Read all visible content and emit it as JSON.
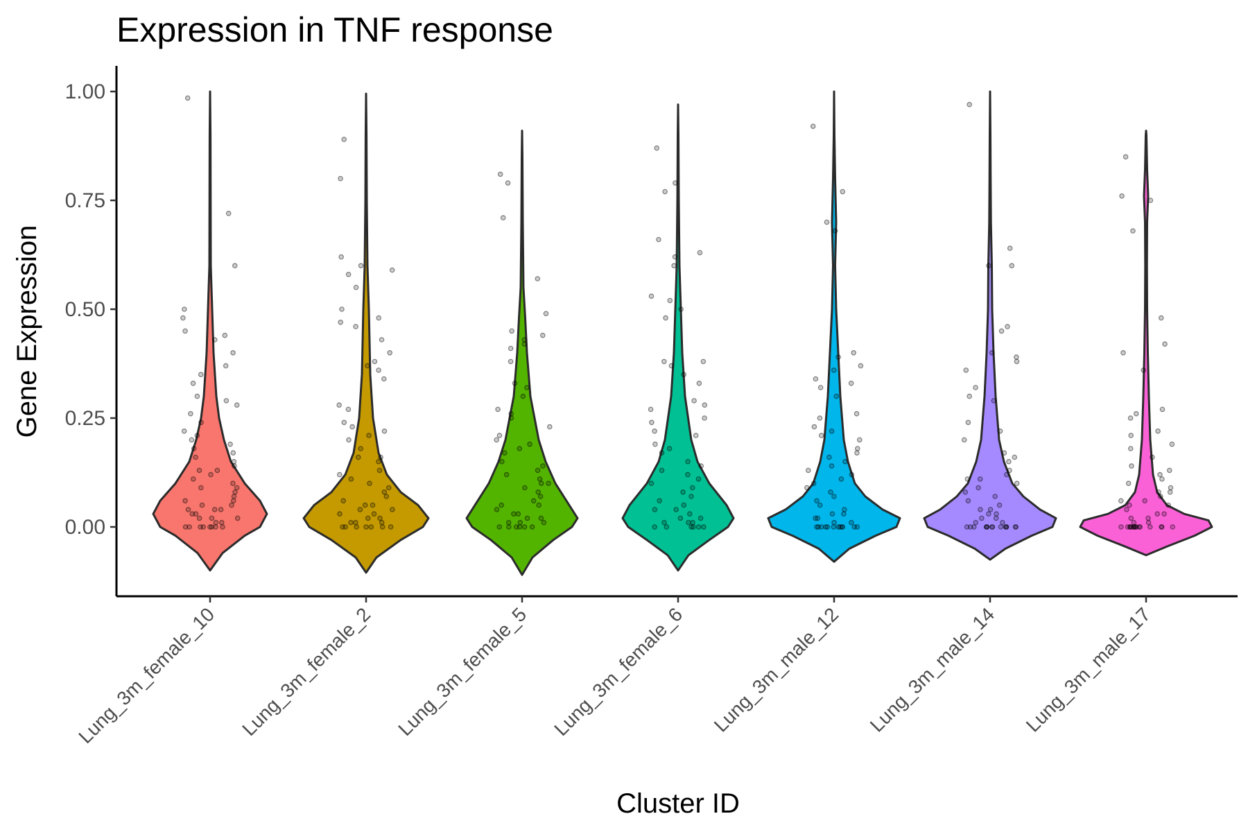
{
  "chart_data": {
    "type": "violin",
    "title": "Expression in TNF response",
    "xlabel": "Cluster ID",
    "ylabel": "Gene Expression",
    "ylim": [
      -0.16,
      1.04
    ],
    "yticks": [
      "0.00",
      "0.25",
      "0.50",
      "0.75",
      "1.00"
    ],
    "legend": "none",
    "grid": false,
    "categories": [
      "Lung_3m_female_10",
      "Lung_3m_female_2",
      "Lung_3m_female_5",
      "Lung_3m_female_6",
      "Lung_3m_male_12",
      "Lung_3m_male_14",
      "Lung_3m_male_17"
    ],
    "series": [
      {
        "category": "Lung_3m_female_10",
        "color": "#F8766D",
        "min": -0.1,
        "max": 1.0,
        "density": [
          [
            -0.1,
            0.0
          ],
          [
            -0.06,
            0.18
          ],
          [
            -0.02,
            0.5
          ],
          [
            0.0,
            0.72
          ],
          [
            0.03,
            0.82
          ],
          [
            0.06,
            0.72
          ],
          [
            0.1,
            0.5
          ],
          [
            0.15,
            0.3
          ],
          [
            0.2,
            0.2
          ],
          [
            0.25,
            0.13
          ],
          [
            0.3,
            0.09
          ],
          [
            0.4,
            0.05
          ],
          [
            0.5,
            0.03
          ],
          [
            0.6,
            0.01
          ],
          [
            0.75,
            0.008
          ],
          [
            0.9,
            0.006
          ],
          [
            1.0,
            0.0
          ]
        ],
        "points": [
          0.985,
          0.72,
          0.6,
          0.5,
          0.48,
          0.45,
          0.44,
          0.43,
          0.4,
          0.37,
          0.35,
          0.33,
          0.3,
          0.29,
          0.28,
          0.26,
          0.24,
          0.22,
          0.21,
          0.2,
          0.19,
          0.18,
          0.17,
          0.16,
          0.15,
          0.14,
          0.13,
          0.13,
          0.12,
          0.11,
          0.1,
          0.09,
          0.09,
          0.08,
          0.07,
          0.06,
          0.06,
          0.05,
          0.05,
          0.04,
          0.04,
          0.04,
          0.03,
          0.03,
          0.02,
          0.02,
          0.02,
          0.01,
          0.01,
          0.0,
          0.0,
          0.0,
          0.0,
          0.0,
          0.0,
          0.0,
          0.0
        ]
      },
      {
        "category": "Lung_3m_female_2",
        "color": "#C49A00",
        "min": -0.105,
        "max": 0.995,
        "density": [
          [
            -0.105,
            0.0
          ],
          [
            -0.07,
            0.15
          ],
          [
            -0.03,
            0.5
          ],
          [
            0.0,
            0.82
          ],
          [
            0.02,
            0.9
          ],
          [
            0.05,
            0.75
          ],
          [
            0.08,
            0.5
          ],
          [
            0.12,
            0.3
          ],
          [
            0.17,
            0.18
          ],
          [
            0.25,
            0.1
          ],
          [
            0.35,
            0.06
          ],
          [
            0.5,
            0.04
          ],
          [
            0.6,
            0.02
          ],
          [
            0.75,
            0.01
          ],
          [
            0.9,
            0.006
          ],
          [
            0.995,
            0.0
          ]
        ],
        "points": [
          0.89,
          0.8,
          0.62,
          0.6,
          0.59,
          0.58,
          0.55,
          0.5,
          0.48,
          0.47,
          0.46,
          0.43,
          0.4,
          0.38,
          0.37,
          0.36,
          0.34,
          0.28,
          0.27,
          0.24,
          0.23,
          0.22,
          0.21,
          0.2,
          0.18,
          0.16,
          0.16,
          0.15,
          0.13,
          0.12,
          0.11,
          0.1,
          0.09,
          0.08,
          0.07,
          0.06,
          0.05,
          0.05,
          0.04,
          0.04,
          0.03,
          0.03,
          0.02,
          0.02,
          0.01,
          0.01,
          0.01,
          0.0,
          0.0,
          0.0,
          0.0,
          0.0,
          0.0,
          0.0
        ]
      },
      {
        "category": "Lung_3m_female_5",
        "color": "#53B400",
        "min": -0.11,
        "max": 0.91,
        "density": [
          [
            -0.11,
            0.0
          ],
          [
            -0.07,
            0.15
          ],
          [
            -0.03,
            0.45
          ],
          [
            0.0,
            0.72
          ],
          [
            0.02,
            0.8
          ],
          [
            0.05,
            0.68
          ],
          [
            0.1,
            0.48
          ],
          [
            0.15,
            0.34
          ],
          [
            0.2,
            0.24
          ],
          [
            0.3,
            0.12
          ],
          [
            0.4,
            0.07
          ],
          [
            0.48,
            0.045
          ],
          [
            0.55,
            0.02
          ],
          [
            0.7,
            0.01
          ],
          [
            0.85,
            0.005
          ],
          [
            0.91,
            0.0
          ]
        ],
        "points": [
          0.81,
          0.79,
          0.71,
          0.57,
          0.49,
          0.45,
          0.44,
          0.43,
          0.42,
          0.41,
          0.38,
          0.33,
          0.32,
          0.3,
          0.27,
          0.26,
          0.25,
          0.23,
          0.21,
          0.2,
          0.19,
          0.18,
          0.17,
          0.15,
          0.14,
          0.13,
          0.12,
          0.11,
          0.1,
          0.1,
          0.09,
          0.08,
          0.07,
          0.06,
          0.05,
          0.05,
          0.04,
          0.03,
          0.03,
          0.02,
          0.02,
          0.01,
          0.01,
          0.01,
          0.0,
          0.0,
          0.0,
          0.0,
          0.0,
          0.0
        ]
      },
      {
        "category": "Lung_3m_female_6",
        "color": "#00C094",
        "min": -0.1,
        "max": 0.97,
        "density": [
          [
            -0.1,
            0.0
          ],
          [
            -0.065,
            0.15
          ],
          [
            -0.03,
            0.45
          ],
          [
            0.0,
            0.72
          ],
          [
            0.02,
            0.8
          ],
          [
            0.05,
            0.7
          ],
          [
            0.1,
            0.45
          ],
          [
            0.15,
            0.28
          ],
          [
            0.2,
            0.19
          ],
          [
            0.3,
            0.1
          ],
          [
            0.4,
            0.06
          ],
          [
            0.5,
            0.04
          ],
          [
            0.6,
            0.02
          ],
          [
            0.75,
            0.01
          ],
          [
            0.9,
            0.005
          ],
          [
            0.97,
            0.0
          ]
        ],
        "points": [
          0.87,
          0.79,
          0.77,
          0.66,
          0.63,
          0.62,
          0.6,
          0.53,
          0.52,
          0.5,
          0.48,
          0.38,
          0.38,
          0.37,
          0.35,
          0.33,
          0.29,
          0.28,
          0.27,
          0.25,
          0.24,
          0.22,
          0.21,
          0.19,
          0.18,
          0.17,
          0.15,
          0.14,
          0.13,
          0.12,
          0.11,
          0.1,
          0.09,
          0.08,
          0.07,
          0.06,
          0.05,
          0.04,
          0.04,
          0.03,
          0.02,
          0.02,
          0.01,
          0.01,
          0.01,
          0.0,
          0.0,
          0.0,
          0.0,
          0.0,
          0.0
        ]
      },
      {
        "category": "Lung_3m_male_12",
        "color": "#00B6EB",
        "min": -0.08,
        "max": 1.0,
        "density": [
          [
            -0.08,
            0.0
          ],
          [
            -0.05,
            0.22
          ],
          [
            -0.02,
            0.6
          ],
          [
            0.0,
            0.9
          ],
          [
            0.02,
            0.95
          ],
          [
            0.04,
            0.7
          ],
          [
            0.07,
            0.45
          ],
          [
            0.1,
            0.3
          ],
          [
            0.15,
            0.2
          ],
          [
            0.2,
            0.14
          ],
          [
            0.3,
            0.09
          ],
          [
            0.4,
            0.06
          ],
          [
            0.5,
            0.03
          ],
          [
            0.6,
            0.015
          ],
          [
            0.7,
            0.03
          ],
          [
            0.8,
            0.015
          ],
          [
            0.9,
            0.005
          ],
          [
            1.0,
            0.0
          ]
        ],
        "points": [
          0.92,
          0.77,
          0.7,
          0.68,
          0.4,
          0.39,
          0.37,
          0.36,
          0.34,
          0.33,
          0.32,
          0.3,
          0.26,
          0.25,
          0.23,
          0.22,
          0.21,
          0.2,
          0.18,
          0.17,
          0.16,
          0.15,
          0.14,
          0.13,
          0.12,
          0.11,
          0.1,
          0.09,
          0.08,
          0.07,
          0.06,
          0.05,
          0.04,
          0.03,
          0.03,
          0.02,
          0.02,
          0.01,
          0.01,
          0.0,
          0.0,
          0.0,
          0.0,
          0.0,
          0.0,
          0.0,
          0.0,
          0.0,
          0.0,
          0.0,
          0.0
        ]
      },
      {
        "category": "Lung_3m_male_14",
        "color": "#A58AFF",
        "min": -0.075,
        "max": 1.0,
        "density": [
          [
            -0.075,
            0.0
          ],
          [
            -0.05,
            0.22
          ],
          [
            -0.02,
            0.6
          ],
          [
            0.0,
            0.9
          ],
          [
            0.02,
            0.95
          ],
          [
            0.04,
            0.72
          ],
          [
            0.07,
            0.48
          ],
          [
            0.1,
            0.32
          ],
          [
            0.15,
            0.2
          ],
          [
            0.2,
            0.13
          ],
          [
            0.3,
            0.08
          ],
          [
            0.4,
            0.05
          ],
          [
            0.5,
            0.03
          ],
          [
            0.6,
            0.025
          ],
          [
            0.7,
            0.012
          ],
          [
            0.8,
            0.008
          ],
          [
            0.9,
            0.005
          ],
          [
            1.0,
            0.0
          ]
        ],
        "points": [
          0.97,
          0.64,
          0.6,
          0.6,
          0.46,
          0.45,
          0.4,
          0.39,
          0.38,
          0.36,
          0.32,
          0.3,
          0.29,
          0.24,
          0.22,
          0.2,
          0.17,
          0.16,
          0.15,
          0.13,
          0.12,
          0.11,
          0.11,
          0.1,
          0.09,
          0.08,
          0.07,
          0.06,
          0.05,
          0.04,
          0.04,
          0.03,
          0.03,
          0.02,
          0.02,
          0.01,
          0.01,
          0.0,
          0.0,
          0.0,
          0.0,
          0.0,
          0.0,
          0.0,
          0.0,
          0.0,
          0.0,
          0.0,
          0.0,
          0.0,
          0.0
        ]
      },
      {
        "category": "Lung_3m_male_17",
        "color": "#FB61D7",
        "min": -0.065,
        "max": 0.91,
        "density": [
          [
            -0.065,
            0.0
          ],
          [
            -0.045,
            0.3
          ],
          [
            -0.02,
            0.7
          ],
          [
            0.0,
            0.95
          ],
          [
            0.015,
            0.9
          ],
          [
            0.03,
            0.55
          ],
          [
            0.05,
            0.3
          ],
          [
            0.08,
            0.16
          ],
          [
            0.12,
            0.1
          ],
          [
            0.2,
            0.06
          ],
          [
            0.3,
            0.04
          ],
          [
            0.4,
            0.025
          ],
          [
            0.5,
            0.015
          ],
          [
            0.6,
            0.012
          ],
          [
            0.7,
            0.015
          ],
          [
            0.76,
            0.03
          ],
          [
            0.82,
            0.015
          ],
          [
            0.9,
            0.005
          ],
          [
            0.91,
            0.0
          ]
        ],
        "points": [
          0.85,
          0.76,
          0.75,
          0.68,
          0.48,
          0.42,
          0.4,
          0.36,
          0.27,
          0.26,
          0.25,
          0.22,
          0.21,
          0.19,
          0.18,
          0.16,
          0.14,
          0.13,
          0.12,
          0.11,
          0.1,
          0.09,
          0.08,
          0.08,
          0.07,
          0.06,
          0.06,
          0.05,
          0.05,
          0.04,
          0.03,
          0.03,
          0.02,
          0.02,
          0.01,
          0.01,
          0.0,
          0.0,
          0.0,
          0.0,
          0.0,
          0.0,
          0.0,
          0.0,
          0.0,
          0.0,
          0.0,
          0.0,
          0.0,
          0.0,
          0.0,
          0.0
        ]
      }
    ]
  }
}
